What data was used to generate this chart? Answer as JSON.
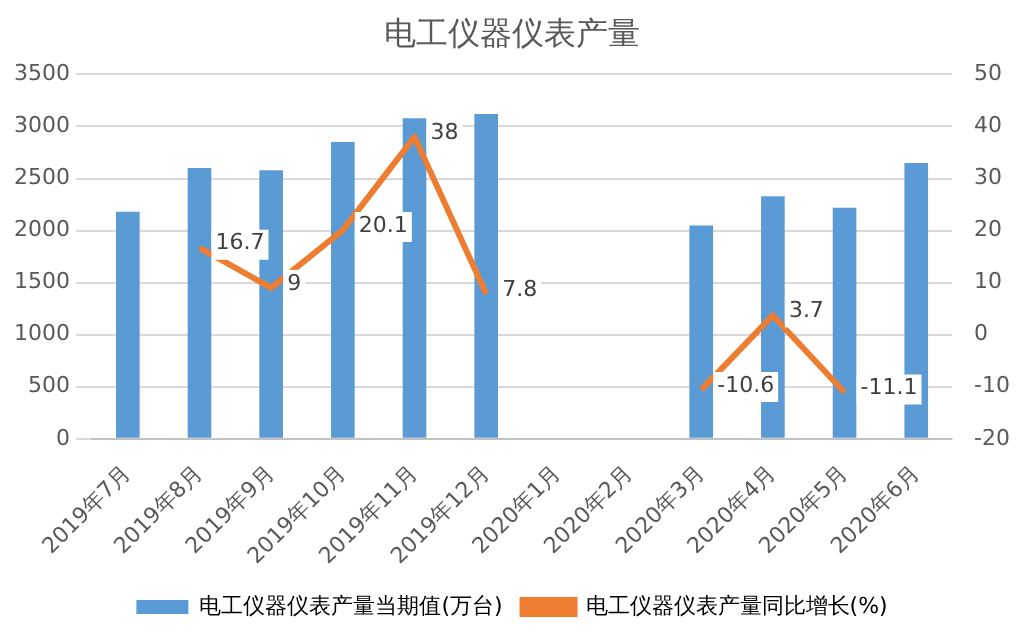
{
  "chart_data": {
    "type": "bar",
    "title": "电工仪器仪表产量",
    "categories": [
      "2019年7月",
      "2019年8月",
      "2019年9月",
      "2019年10月",
      "2019年11月",
      "2019年12月",
      "2020年1月",
      "2020年2月",
      "2020年3月",
      "2020年4月",
      "2020年5月",
      "2020年6月"
    ],
    "series": [
      {
        "name": "电工仪器仪表产量当期值(万台)",
        "color": "#5b9bd5",
        "values": [
          2180,
          2600,
          2580,
          2850,
          3080,
          3120,
          null,
          null,
          2050,
          2330,
          2220,
          2650
        ]
      },
      {
        "name": "电工仪器仪表产量同比增长(%)",
        "type": "line",
        "axis": "y2",
        "color": "#ed7d31",
        "values": [
          null,
          16.7,
          9,
          20.1,
          38,
          7.8,
          null,
          null,
          -10.6,
          3.7,
          -11.1,
          null
        ],
        "value_labels": [
          null,
          "16.7",
          "9",
          "20.1",
          "38",
          "7.8",
          null,
          null,
          "-10.6",
          "3.7",
          "-11.1",
          null
        ]
      }
    ],
    "ylim": [
      0,
      3500
    ],
    "yticks": [
      0,
      500,
      1000,
      1500,
      2000,
      2500,
      3000,
      3500
    ],
    "y2lim": [
      -20,
      50
    ],
    "y2ticks": [
      -20,
      -10,
      0,
      10,
      20,
      30,
      40,
      50
    ],
    "grid": "y",
    "legend": "bottom",
    "marker": "none"
  }
}
